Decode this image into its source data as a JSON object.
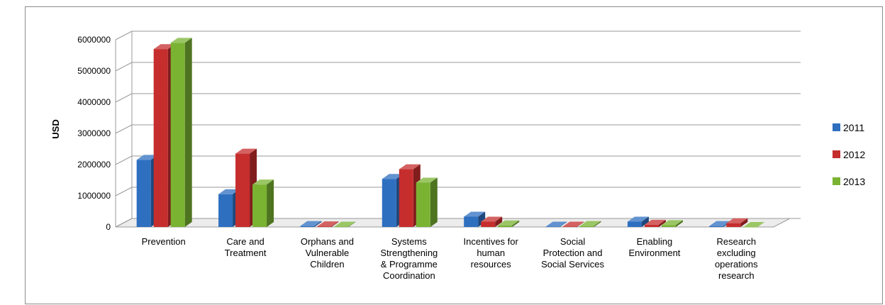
{
  "chart_data": {
    "type": "bar",
    "ylabel": "USD",
    "ylim": [
      0,
      6000000
    ],
    "yticks": [
      "0",
      "1000000",
      "2000000",
      "3000000",
      "4000000",
      "5000000",
      "6000000"
    ],
    "categories": [
      [
        "Prevention"
      ],
      [
        "Care and",
        "Treatment"
      ],
      [
        "Orphans and",
        "Vulnerable",
        "Children"
      ],
      [
        "Systems",
        "Strengthening",
        "& Programme",
        "Coordination"
      ],
      [
        "Incentives for",
        "human",
        "resources"
      ],
      [
        "Social",
        "Protection and",
        "Social Services"
      ],
      [
        "Enabling",
        "Environment"
      ],
      [
        "Research",
        "excluding",
        "operations",
        "research"
      ]
    ],
    "series": [
      {
        "name": "2011",
        "color": "#2e6fc0",
        "values": [
          2150000,
          1050000,
          30000,
          1540000,
          330000,
          10000,
          170000,
          30000
        ]
      },
      {
        "name": "2012",
        "color": "#c62d2d",
        "values": [
          5700000,
          2350000,
          20000,
          1850000,
          170000,
          10000,
          70000,
          120000
        ]
      },
      {
        "name": "2013",
        "color": "#7ab332",
        "values": [
          5900000,
          1360000,
          10000,
          1420000,
          50000,
          30000,
          60000,
          0
        ]
      }
    ],
    "legend_position": "right",
    "grid": true
  }
}
